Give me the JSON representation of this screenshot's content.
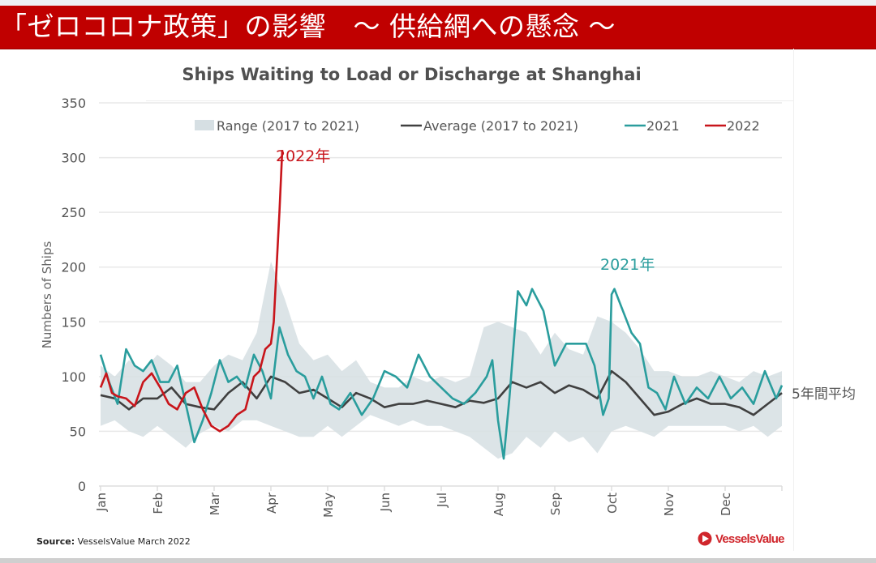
{
  "banner": {
    "title": "「ゼロコロナ政策」の影響　～ 供給網への懸念 ～"
  },
  "source": {
    "label": "Source:",
    "text": " VesselsValue March 2022"
  },
  "logo": {
    "text": "VesselsValue",
    "icon": "vesselsvalue-logo-icon"
  },
  "annotations": {
    "y2022": "2022年",
    "y2021": "2021年",
    "avg5": "5年間平均"
  },
  "colors": {
    "banner": "#c00000",
    "range": "#d6dfe3",
    "average": "#404040",
    "y2021": "#2a9d9d",
    "y2022": "#c8151b"
  },
  "chart_data": {
    "type": "line",
    "title": "Ships Waiting to Load or Discharge at Shanghai",
    "xlabel": "",
    "ylabel": "Numbers of Ships",
    "ylim": [
      0,
      350
    ],
    "yticks": [
      0,
      50,
      100,
      150,
      200,
      250,
      300,
      350
    ],
    "xlim": [
      0,
      12
    ],
    "xticks": [
      "Jan",
      "Feb",
      "Mar",
      "Apr",
      "May",
      "Jun",
      "Jul",
      "Aug",
      "Sep",
      "Oct",
      "Nov",
      "Dec"
    ],
    "grid": true,
    "legend_position": "top",
    "legend": [
      "Range (2017 to 2021)",
      "Average (2017 to 2021)",
      "2021",
      "2022"
    ],
    "x_unit": "month index (0 = Jan 1)",
    "series": [
      {
        "name": "Range (2017 to 2021)",
        "kind": "band",
        "x": [
          0,
          0.25,
          0.5,
          0.75,
          1,
          1.25,
          1.5,
          1.75,
          2,
          2.25,
          2.5,
          2.75,
          3,
          3.25,
          3.5,
          3.75,
          4,
          4.25,
          4.5,
          4.75,
          5,
          5.25,
          5.5,
          5.75,
          6,
          6.25,
          6.5,
          6.75,
          7,
          7.25,
          7.5,
          7.75,
          8,
          8.25,
          8.5,
          8.75,
          9,
          9.25,
          9.5,
          9.75,
          10,
          10.25,
          10.5,
          10.75,
          11,
          11.25,
          11.5,
          11.75,
          12
        ],
        "low": [
          55,
          60,
          50,
          45,
          55,
          45,
          35,
          48,
          55,
          50,
          60,
          60,
          55,
          50,
          45,
          45,
          55,
          45,
          55,
          65,
          60,
          55,
          60,
          55,
          55,
          50,
          45,
          35,
          25,
          30,
          45,
          35,
          50,
          40,
          45,
          30,
          50,
          55,
          50,
          45,
          55,
          55,
          55,
          55,
          55,
          50,
          55,
          45,
          55
        ],
        "high": [
          110,
          100,
          115,
          105,
          120,
          110,
          95,
          95,
          110,
          120,
          115,
          140,
          205,
          170,
          130,
          115,
          120,
          105,
          115,
          95,
          90,
          90,
          100,
          95,
          100,
          95,
          100,
          145,
          150,
          145,
          140,
          120,
          140,
          125,
          120,
          155,
          150,
          140,
          125,
          105,
          105,
          100,
          100,
          105,
          100,
          95,
          105,
          100,
          105
        ]
      },
      {
        "name": "Average (2017 to 2021)",
        "kind": "line",
        "x": [
          0,
          0.25,
          0.5,
          0.75,
          1,
          1.25,
          1.5,
          1.75,
          2,
          2.25,
          2.5,
          2.75,
          3,
          3.25,
          3.5,
          3.75,
          4,
          4.25,
          4.5,
          4.75,
          5,
          5.25,
          5.5,
          5.75,
          6,
          6.25,
          6.5,
          6.75,
          7,
          7.25,
          7.5,
          7.75,
          8,
          8.25,
          8.5,
          8.75,
          9,
          9.25,
          9.5,
          9.75,
          10,
          10.25,
          10.5,
          10.75,
          11,
          11.25,
          11.5,
          11.75,
          12
        ],
        "values": [
          83,
          80,
          70,
          80,
          80,
          90,
          75,
          72,
          70,
          85,
          95,
          80,
          100,
          95,
          85,
          88,
          80,
          72,
          85,
          80,
          72,
          75,
          75,
          78,
          75,
          72,
          78,
          76,
          80,
          95,
          90,
          95,
          85,
          92,
          88,
          80,
          105,
          95,
          80,
          65,
          68,
          75,
          80,
          75,
          75,
          72,
          65,
          75,
          85
        ]
      },
      {
        "name": "2021",
        "kind": "line",
        "x": [
          0,
          0.15,
          0.3,
          0.45,
          0.6,
          0.75,
          0.9,
          1.05,
          1.2,
          1.35,
          1.5,
          1.65,
          1.8,
          1.95,
          2.1,
          2.25,
          2.4,
          2.55,
          2.7,
          2.85,
          3.0,
          3.15,
          3.3,
          3.45,
          3.6,
          3.75,
          3.9,
          4.05,
          4.2,
          4.4,
          4.6,
          4.8,
          5.0,
          5.2,
          5.4,
          5.6,
          5.8,
          6.0,
          6.2,
          6.4,
          6.6,
          6.8,
          6.9,
          7.0,
          7.1,
          7.2,
          7.35,
          7.5,
          7.6,
          7.8,
          8.0,
          8.2,
          8.4,
          8.55,
          8.7,
          8.85,
          8.95,
          9.0,
          9.05,
          9.2,
          9.35,
          9.5,
          9.65,
          9.8,
          9.95,
          10.1,
          10.3,
          10.5,
          10.7,
          10.9,
          11.1,
          11.3,
          11.5,
          11.7,
          11.9,
          12.0
        ],
        "values": [
          120,
          95,
          75,
          125,
          110,
          105,
          115,
          95,
          95,
          110,
          75,
          40,
          60,
          85,
          115,
          95,
          100,
          90,
          120,
          105,
          80,
          145,
          120,
          105,
          100,
          80,
          100,
          75,
          70,
          85,
          65,
          80,
          105,
          100,
          90,
          120,
          100,
          90,
          80,
          75,
          85,
          100,
          115,
          60,
          25,
          80,
          178,
          165,
          180,
          160,
          110,
          130,
          130,
          130,
          110,
          65,
          80,
          175,
          180,
          160,
          140,
          130,
          90,
          85,
          70,
          100,
          75,
          90,
          80,
          100,
          80,
          90,
          75,
          105,
          80,
          92
        ]
      },
      {
        "name": "2022",
        "kind": "line",
        "x": [
          0,
          0.1,
          0.2,
          0.3,
          0.45,
          0.6,
          0.75,
          0.9,
          1.05,
          1.2,
          1.35,
          1.5,
          1.65,
          1.8,
          1.95,
          2.1,
          2.25,
          2.4,
          2.55,
          2.7,
          2.8,
          2.9,
          3.0,
          3.05,
          3.1,
          3.15,
          3.2
        ],
        "values": [
          90,
          103,
          85,
          82,
          80,
          73,
          95,
          103,
          90,
          75,
          70,
          85,
          90,
          70,
          55,
          50,
          55,
          65,
          70,
          100,
          105,
          125,
          130,
          150,
          200,
          250,
          307
        ]
      }
    ]
  }
}
